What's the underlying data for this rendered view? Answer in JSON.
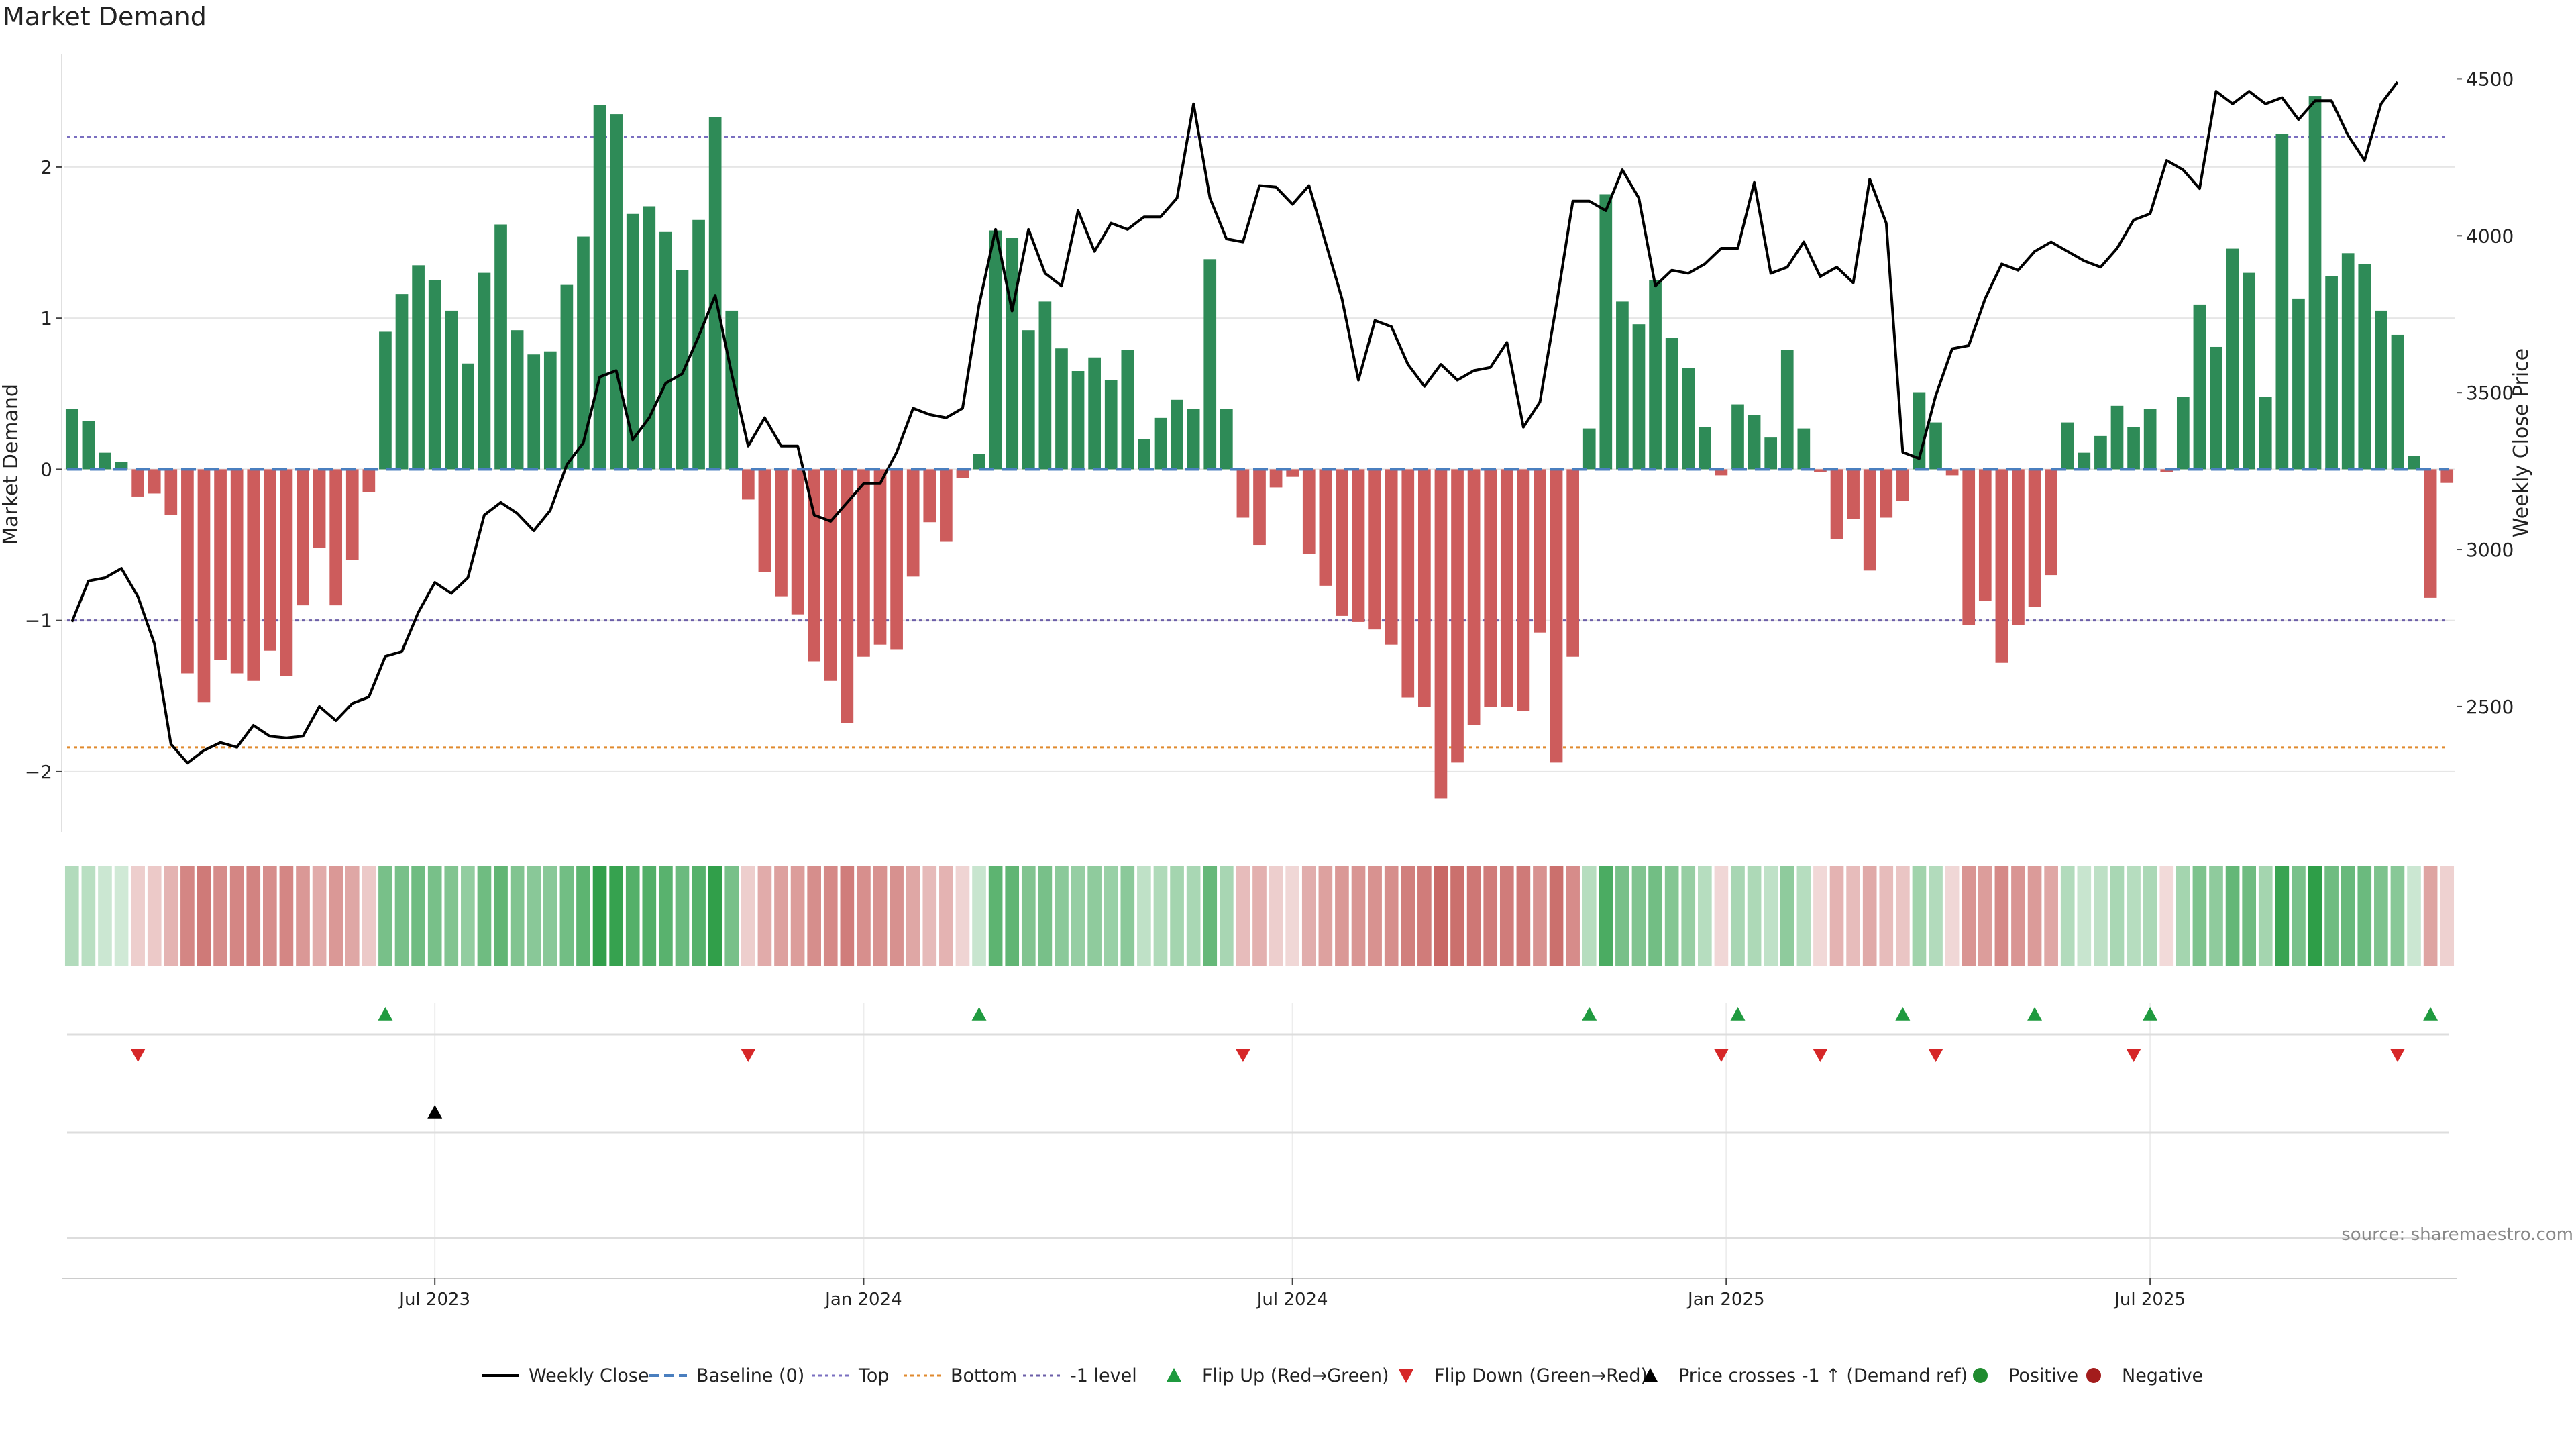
{
  "title": "Market Demand",
  "source_note": "source: sharemaestro.com",
  "colors": {
    "positive_bar": "#2e8b57",
    "negative_bar": "#cd5c5c",
    "price_line": "#000000",
    "baseline": "#4a7fbf",
    "top_line": "#7a6fc0",
    "bottom_line": "#e08a2e",
    "minus_one_line": "#6b5ea8",
    "flip_up": "#1f9a3f",
    "flip_down": "#d62728",
    "cross_marker": "#000000",
    "positive_dot": "#1f8b2f",
    "negative_dot": "#a31c1c",
    "grid": "#e6e6e6",
    "heat_positive": "#2e9e48",
    "heat_negative": "#c0504d"
  },
  "chart_data": {
    "type": "bar",
    "title": "Market Demand",
    "ylabel": "Market Demand",
    "y2label": "Weekly Close Price",
    "ylim": [
      -2.4,
      2.75
    ],
    "y2lim": [
      2100,
      4580
    ],
    "yticks": [
      -2,
      -1,
      0,
      1,
      2
    ],
    "yticklabels": [
      "−2",
      "−1",
      "0",
      "1",
      "2"
    ],
    "y2ticks": [
      2500,
      3000,
      3500,
      4000,
      4500
    ],
    "y2ticklabels": [
      "2500",
      "3000",
      "3500",
      "4000",
      "4500"
    ],
    "xticks": [
      {
        "week": 22,
        "label": "Jul 2023"
      },
      {
        "week": 48,
        "label": "Jan 2024"
      },
      {
        "week": 74,
        "label": "Jul 2024"
      },
      {
        "week": 100.3,
        "label": "Jan 2025"
      },
      {
        "week": 126,
        "label": "Jul 2025"
      }
    ],
    "reference_lines": {
      "top": 2.2,
      "bottom": -1.84,
      "minus_one": -1.0,
      "baseline": 0
    },
    "demand": [
      0.4,
      0.32,
      0.11,
      0.05,
      -0.18,
      -0.16,
      -0.3,
      -1.35,
      -1.54,
      -1.26,
      -1.35,
      -1.4,
      -1.2,
      -1.37,
      -0.9,
      -0.52,
      -0.9,
      -0.6,
      -0.15,
      0.91,
      1.16,
      1.35,
      1.25,
      1.05,
      0.7,
      1.3,
      1.62,
      0.92,
      0.76,
      0.78,
      1.22,
      1.54,
      2.41,
      2.35,
      1.69,
      1.74,
      1.57,
      1.32,
      1.65,
      2.33,
      1.05,
      -0.2,
      -0.68,
      -0.84,
      -0.96,
      -1.27,
      -1.4,
      -1.68,
      -1.24,
      -1.16,
      -1.19,
      -0.71,
      -0.35,
      -0.48,
      -0.06,
      0.1,
      1.58,
      1.53,
      0.92,
      1.11,
      0.8,
      0.65,
      0.74,
      0.59,
      0.79,
      0.2,
      0.34,
      0.46,
      0.4,
      1.39,
      0.4,
      -0.32,
      -0.5,
      -0.12,
      -0.05,
      -0.56,
      -0.77,
      -0.97,
      -1.01,
      -1.06,
      -1.16,
      -1.51,
      -1.57,
      -2.18,
      -1.94,
      -1.69,
      -1.57,
      -1.57,
      -1.6,
      -1.08,
      -1.94,
      -1.24,
      0.27,
      1.82,
      1.11,
      0.96,
      1.25,
      0.87,
      0.67,
      0.28,
      -0.04,
      0.43,
      0.36,
      0.21,
      0.79,
      0.27,
      -0.02,
      -0.46,
      -0.33,
      -0.67,
      -0.32,
      -0.21,
      0.51,
      0.31,
      -0.04,
      -1.03,
      -0.87,
      -1.28,
      -1.03,
      -0.91,
      -0.7,
      0.31,
      0.11,
      0.22,
      0.42,
      0.28,
      0.4,
      -0.02,
      0.48,
      1.09,
      0.81,
      1.46,
      1.3,
      0.48,
      2.22,
      1.13,
      2.47,
      1.28,
      1.43,
      1.36,
      1.05,
      0.89,
      0.09,
      -0.85,
      -0.09
    ],
    "weekly_close": [
      2770,
      2900,
      2910,
      2940,
      2850,
      2700,
      2380,
      2320,
      2360,
      2385,
      2370,
      2440,
      2405,
      2400,
      2405,
      2500,
      2455,
      2510,
      2530,
      2660,
      2675,
      2800,
      2895,
      2860,
      2910,
      3110,
      3150,
      3115,
      3060,
      3125,
      3270,
      3340,
      3550,
      3570,
      3350,
      3420,
      3530,
      3560,
      3680,
      3810,
      3560,
      3330,
      3420,
      3330,
      3330,
      3110,
      3090,
      3150,
      3210,
      3210,
      3310,
      3450,
      3430,
      3420,
      3450,
      3780,
      4020,
      3760,
      4020,
      3880,
      3840,
      4080,
      3950,
      4040,
      4020,
      4060,
      4060,
      4120,
      4420,
      4120,
      3990,
      3980,
      4160,
      4155,
      4100,
      4160,
      3980,
      3800,
      3540,
      3730,
      3710,
      3590,
      3520,
      3590,
      3540,
      3570,
      3580,
      3660,
      3390,
      3470,
      3780,
      4110,
      4110,
      4080,
      4210,
      4120,
      3840,
      3890,
      3880,
      3910,
      3960,
      3960,
      4170,
      3880,
      3900,
      3980,
      3870,
      3900,
      3850,
      4180,
      4040,
      3310,
      3290,
      3490,
      3640,
      3650,
      3800,
      3910,
      3890,
      3950,
      3980,
      3950,
      3920,
      3900,
      3960,
      4050,
      4070,
      4240,
      4210,
      4150,
      4460,
      4420,
      4460,
      4420,
      4440,
      4370,
      4430,
      4430,
      4320,
      4240,
      4420,
      4490
    ],
    "flip_up_weeks": [
      19,
      55,
      92,
      101,
      111,
      119,
      126,
      143
    ],
    "flip_down_weeks": [
      4,
      41,
      71,
      100,
      106,
      113,
      125,
      141
    ],
    "price_cross_weeks": [
      22
    ],
    "heat_values": [
      0.22,
      0.18,
      0.08,
      0.05,
      -0.12,
      -0.15,
      -0.3,
      -0.6,
      -0.68,
      -0.56,
      -0.6,
      -0.62,
      -0.55,
      -0.6,
      -0.48,
      -0.35,
      -0.48,
      -0.38,
      -0.15,
      0.55,
      0.55,
      0.6,
      0.55,
      0.5,
      0.4,
      0.6,
      0.68,
      0.5,
      0.45,
      0.45,
      0.58,
      0.7,
      0.95,
      0.92,
      0.75,
      0.76,
      0.72,
      0.62,
      0.74,
      0.95,
      0.55,
      -0.12,
      -0.35,
      -0.42,
      -0.45,
      -0.55,
      -0.58,
      -0.66,
      -0.54,
      -0.52,
      -0.53,
      -0.38,
      -0.25,
      -0.3,
      -0.08,
      0.1,
      0.7,
      0.68,
      0.5,
      0.55,
      0.44,
      0.38,
      0.42,
      0.36,
      0.44,
      0.15,
      0.24,
      0.3,
      0.27,
      0.65,
      0.28,
      -0.24,
      -0.32,
      -0.12,
      -0.06,
      -0.34,
      -0.42,
      -0.48,
      -0.5,
      -0.52,
      -0.55,
      -0.65,
      -0.67,
      -0.8,
      -0.75,
      -0.7,
      -0.67,
      -0.67,
      -0.68,
      -0.52,
      -0.75,
      -0.56,
      0.2,
      0.8,
      0.55,
      0.5,
      0.58,
      0.48,
      0.38,
      0.2,
      -0.06,
      0.28,
      0.25,
      0.15,
      0.42,
      0.2,
      -0.05,
      -0.3,
      -0.24,
      -0.36,
      -0.24,
      -0.18,
      0.32,
      0.22,
      -0.06,
      -0.5,
      -0.45,
      -0.58,
      -0.5,
      -0.46,
      -0.38,
      0.22,
      0.1,
      0.16,
      0.27,
      0.2,
      0.26,
      -0.04,
      0.3,
      0.52,
      0.42,
      0.66,
      0.6,
      0.3,
      0.9,
      0.54,
      0.98,
      0.6,
      0.64,
      0.62,
      0.52,
      0.46,
      0.08,
      -0.4,
      -0.1
    ]
  },
  "legend": [
    {
      "key": "weekly_close",
      "label": "Weekly Close",
      "symbol": "line"
    },
    {
      "key": "baseline",
      "label": "Baseline (0)",
      "symbol": "dashed"
    },
    {
      "key": "top",
      "label": "Top",
      "symbol": "dotted-top"
    },
    {
      "key": "bottom",
      "label": "Bottom",
      "symbol": "dotted-bottom"
    },
    {
      "key": "minus_one",
      "label": "-1 level",
      "symbol": "dotted-minus-one"
    },
    {
      "key": "flip_up",
      "label": "Flip Up (Red→Green)",
      "symbol": "triangle-up-green"
    },
    {
      "key": "flip_down",
      "label": "Flip Down (Green→Red)",
      "symbol": "triangle-down-red"
    },
    {
      "key": "price_cross",
      "label": "Price crosses -1 ↑ (Demand ref)",
      "symbol": "triangle-up-black"
    },
    {
      "key": "positive",
      "label": "Positive",
      "symbol": "dot-green"
    },
    {
      "key": "negative",
      "label": "Negative",
      "symbol": "dot-red"
    }
  ]
}
